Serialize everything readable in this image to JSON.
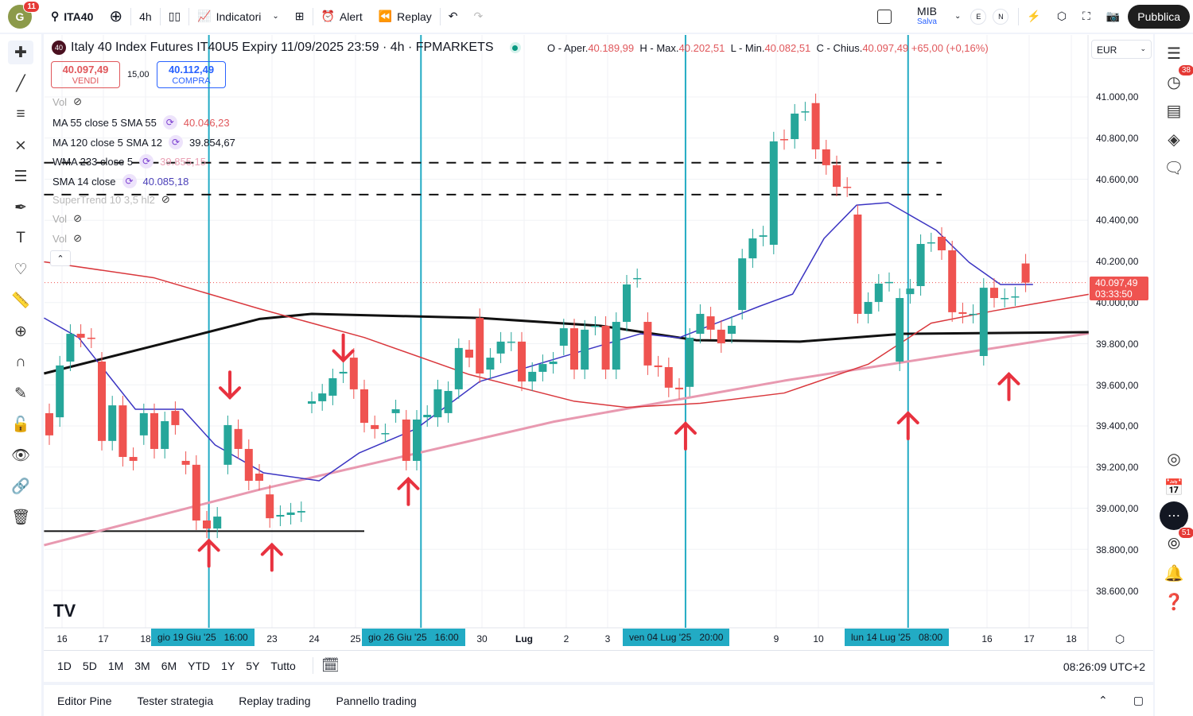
{
  "topbar": {
    "avatar_letter": "G",
    "avatar_badge": "11",
    "symbol": "ITA40",
    "interval": "4h",
    "indicators": "Indicatori",
    "alert": "Alert",
    "replay": "Replay",
    "layout_name": "MIB",
    "layout_status": "Salva",
    "e_label": "E",
    "n_label": "N",
    "publish": "Pubblica"
  },
  "legend": {
    "logo": "40",
    "title": "Italy 40 Index Futures IT40U5 Expiry 11/09/2025 23:59 · 4h · FPMARKETS",
    "o_label": "O - Aper.",
    "o": "40.189,99",
    "h_label": "H - Max.",
    "h": "40.202,51",
    "l_label": "L - Min.",
    "l": "40.082,51",
    "c_label": "C - Chius.",
    "c": "40.097,49",
    "change": "+65,00 (+0,16%)"
  },
  "trade": {
    "sell_price": "40.097,49",
    "sell_label": "VENDI",
    "spread": "15,00",
    "buy_price": "40.112,49",
    "buy_label": "COMPRA"
  },
  "indicators": [
    {
      "name": "Vol",
      "value": ""
    },
    {
      "name": "MA 55 close 5 SMA 55",
      "value": "40.046,23",
      "color": "#e0575b"
    },
    {
      "name": "MA 120 close 5 SMA 12",
      "value": "39.854,67",
      "color": "#131722"
    },
    {
      "name": "WMA 233 close 5",
      "value": "39.855,15",
      "color": "#eaa0b4"
    },
    {
      "name": "SMA 14 close",
      "value": "40.085,18",
      "color": "#4a3fb8"
    },
    {
      "name": "SuperTrend 10 3,5 hl2",
      "value": ""
    },
    {
      "name": "Vol",
      "value": ""
    },
    {
      "name": "Vol",
      "value": ""
    }
  ],
  "currency": "EUR",
  "price_axis": [
    "41.000,00",
    "40.800,00",
    "40.600,00",
    "40.400,00",
    "40.200,00",
    "40.000,00",
    "39.800,00",
    "39.600,00",
    "39.400,00",
    "39.200,00",
    "39.000,00",
    "38.800,00",
    "38.600,00"
  ],
  "last_price": {
    "price": "40.097,49",
    "countdown": "03:33:50"
  },
  "time_axis": [
    "16",
    "17",
    "18",
    "23",
    "24",
    "25",
    "30",
    "Lug",
    "2",
    "3",
    "9",
    "10",
    "16",
    "17",
    "18"
  ],
  "time_marks": [
    "gio 19 Giu '25   16:00",
    "gio 26 Giu '25   16:00",
    "ven 04 Lug '25   20:00",
    "lun 14 Lug '25   08:00"
  ],
  "ranges": [
    "1D",
    "5D",
    "1M",
    "3M",
    "6M",
    "YTD",
    "1Y",
    "5Y",
    "Tutto"
  ],
  "clock": "08:26:09 UTC+2",
  "bottom_tabs": [
    "Editor Pine",
    "Tester strategia",
    "Replay trading",
    "Pannello trading"
  ],
  "right_badges": {
    "ideas": "38",
    "news": "51"
  },
  "colors": {
    "up": "#26a69a",
    "down": "#ef5350",
    "sma14": "#3b34c2",
    "ma55": "#d9373c",
    "wma233": "#e899b0",
    "ma120": "#111111",
    "crosshair": "#22abc4",
    "arrow": "#e8323f"
  },
  "chart_data": {
    "type": "candlestick",
    "ylim": [
      38500,
      41150
    ],
    "candles_oc": [
      [
        39462,
        39354
      ],
      [
        39442,
        39694
      ],
      [
        39713,
        39848
      ],
      [
        39848,
        39829
      ],
      [
        39829,
        39825
      ],
      [
        39713,
        39327
      ],
      [
        39327,
        39500
      ],
      [
        39500,
        39249
      ],
      [
        39249,
        39230
      ],
      [
        39354,
        39462
      ],
      [
        39462,
        39288
      ],
      [
        39288,
        39423
      ],
      [
        39473,
        39404
      ],
      [
        39230,
        39211
      ],
      [
        39211,
        38940
      ],
      [
        38940,
        38901
      ],
      [
        38901,
        38959
      ],
      [
        39211,
        39404
      ],
      [
        39385,
        39288
      ],
      [
        39288,
        39133
      ],
      [
        39168,
        39133
      ],
      [
        39067,
        38951
      ],
      [
        38959,
        38967
      ],
      [
        38967,
        38979
      ],
      [
        38979,
        38986
      ],
      [
        39508,
        39520
      ],
      [
        39520,
        39558
      ],
      [
        39547,
        39632
      ],
      [
        39655,
        39663
      ],
      [
        39732,
        39578
      ],
      [
        39578,
        39415
      ],
      [
        39404,
        39385
      ],
      [
        39365,
        39365
      ],
      [
        39462,
        39481
      ],
      [
        39431,
        39230
      ],
      [
        39230,
        39431
      ],
      [
        39442,
        39454
      ],
      [
        39442,
        39578
      ],
      [
        39462,
        39570
      ],
      [
        39578,
        39779
      ],
      [
        39771,
        39732
      ],
      [
        39925,
        39655
      ],
      [
        39674,
        39732
      ],
      [
        39752,
        39810
      ],
      [
        39810,
        39810
      ],
      [
        39810,
        39616
      ],
      [
        39616,
        39663
      ],
      [
        39663,
        39701
      ],
      [
        39701,
        39713
      ],
      [
        39790,
        39875
      ],
      [
        39875,
        39674
      ],
      [
        39674,
        39868
      ],
      [
        39887,
        39887
      ],
      [
        39887,
        39674
      ],
      [
        39674,
        39906
      ],
      [
        39906,
        40088
      ],
      [
        40119,
        40119
      ],
      [
        39906,
        39694
      ],
      [
        39694,
        39686
      ],
      [
        39686,
        39586
      ],
      [
        39586,
        39578
      ],
      [
        39590,
        39829
      ],
      [
        39848,
        39945
      ],
      [
        39933,
        39868
      ],
      [
        39868,
        39802
      ],
      [
        39848,
        39887
      ],
      [
        39964,
        40215
      ],
      [
        40215,
        40312
      ],
      [
        40320,
        40327
      ],
      [
        40281,
        40784
      ],
      [
        40795,
        40790
      ],
      [
        40795,
        40919
      ],
      [
        40930,
        40930
      ],
      [
        40970,
        40745
      ],
      [
        40745,
        40668
      ],
      [
        40668,
        40563
      ],
      [
        40563,
        40560
      ],
      [
        40428,
        39945
      ],
      [
        39945,
        40003
      ],
      [
        40003,
        40092
      ],
      [
        40100,
        40100
      ],
      [
        39713,
        40022
      ],
      [
        40041,
        40068
      ],
      [
        40080,
        40285
      ],
      [
        40293,
        40293
      ],
      [
        40320,
        40254
      ],
      [
        40254,
        39953
      ],
      [
        39953,
        39945
      ],
      [
        39945,
        39945
      ],
      [
        39740,
        40072
      ],
      [
        40072,
        40022
      ],
      [
        40022,
        40022
      ],
      [
        40030,
        40030
      ],
      [
        40190,
        40097
      ]
    ],
    "series": [
      {
        "name": "SMA 14",
        "points": [
          [
            -0.5,
            39925
          ],
          [
            2.8,
            39829
          ],
          [
            8.2,
            39481
          ],
          [
            12.7,
            39481
          ],
          [
            15.8,
            39307
          ],
          [
            20.4,
            39172
          ],
          [
            25.7,
            39133
          ],
          [
            29.5,
            39268
          ],
          [
            34.9,
            39385
          ],
          [
            41,
            39616
          ],
          [
            48.6,
            39732
          ],
          [
            56.3,
            39848
          ],
          [
            60,
            39829
          ],
          [
            67.7,
            39983
          ],
          [
            70.8,
            40041
          ],
          [
            73.8,
            40312
          ],
          [
            76.9,
            40474
          ],
          [
            79.9,
            40486
          ],
          [
            84.5,
            40351
          ],
          [
            87.6,
            40196
          ],
          [
            90.6,
            40088
          ],
          [
            93.7,
            40088
          ]
        ]
      },
      {
        "name": "MA 55",
        "points": [
          [
            -0.5,
            40198
          ],
          [
            10,
            40120
          ],
          [
            20,
            39970
          ],
          [
            30,
            39830
          ],
          [
            40,
            39650
          ],
          [
            50,
            39520
          ],
          [
            55,
            39490
          ],
          [
            62,
            39510
          ],
          [
            70,
            39560
          ],
          [
            78,
            39700
          ],
          [
            84,
            39900
          ],
          [
            90,
            39960
          ],
          [
            99,
            40040
          ]
        ]
      },
      {
        "name": "MA 120",
        "points": [
          [
            -0.5,
            39655
          ],
          [
            10,
            39790
          ],
          [
            20,
            39920
          ],
          [
            25,
            39945
          ],
          [
            41,
            39925
          ],
          [
            52.5,
            39887
          ],
          [
            61.6,
            39817
          ],
          [
            71.5,
            39810
          ],
          [
            81.4,
            39848
          ],
          [
            99,
            39856
          ]
        ]
      },
      {
        "name": "WMA 233",
        "points": [
          [
            -0.5,
            38820
          ],
          [
            20,
            39090
          ],
          [
            48,
            39420
          ],
          [
            70,
            39620
          ],
          [
            99,
            39850
          ]
        ]
      }
    ],
    "hlines": [
      {
        "price": 40680,
        "style": "dashed",
        "from": -0.5,
        "to": 85
      },
      {
        "price": 40525,
        "style": "dashed",
        "from": -0.5,
        "to": 85
      },
      {
        "price": 38888,
        "style": "solid",
        "from": -0.5,
        "to": 30
      }
    ],
    "crosshairs": [
      15.2,
      35.4,
      60.6,
      81.8
    ],
    "arrows": [
      {
        "i": 17.2,
        "price": 39600,
        "dir": "down"
      },
      {
        "i": 28,
        "price": 39780,
        "dir": "down"
      },
      {
        "i": 15.2,
        "price": 38780,
        "dir": "up"
      },
      {
        "i": 21.2,
        "price": 38760,
        "dir": "up"
      },
      {
        "i": 34.2,
        "price": 39080,
        "dir": "up"
      },
      {
        "i": 60.6,
        "price": 39350,
        "dir": "up"
      },
      {
        "i": 81.8,
        "price": 39400,
        "dir": "up"
      },
      {
        "i": 91.4,
        "price": 39590,
        "dir": "up"
      }
    ]
  }
}
